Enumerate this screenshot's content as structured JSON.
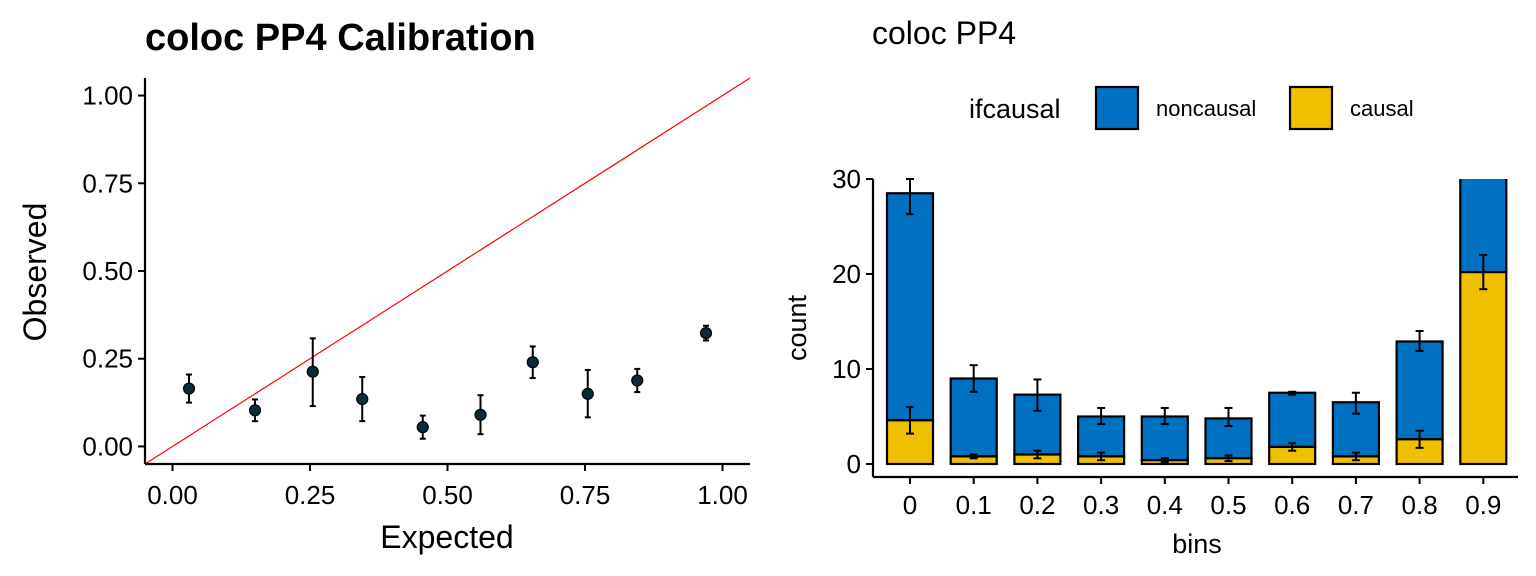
{
  "colors": {
    "noncausal": "#0070C0",
    "causal": "#EFC000",
    "point": "#0B2A3A",
    "identity_line": "#FF0000",
    "bar_outline": "#000000"
  },
  "chart_data": [
    {
      "type": "scatter",
      "title": "coloc PP4 Calibration",
      "xlabel": "Expected",
      "ylabel": "Observed",
      "xlim": [
        -0.05,
        1.05
      ],
      "ylim": [
        -0.05,
        1.05
      ],
      "xticks": [
        0,
        0.25,
        0.5,
        0.75,
        1
      ],
      "yticks": [
        0,
        0.25,
        0.5,
        0.75,
        1
      ],
      "xtick_labels": [
        "0.00",
        "0.25",
        "0.50",
        "0.75",
        "1.00"
      ],
      "ytick_labels": [
        "0.00",
        "0.25",
        "0.50",
        "0.75",
        "1.00"
      ],
      "reference_line": "y = x",
      "points": [
        {
          "x": 0.03,
          "y": 0.165,
          "ymin": 0.125,
          "ymax": 0.205
        },
        {
          "x": 0.15,
          "y": 0.103,
          "ymin": 0.072,
          "ymax": 0.134
        },
        {
          "x": 0.255,
          "y": 0.213,
          "ymin": 0.115,
          "ymax": 0.308
        },
        {
          "x": 0.345,
          "y": 0.135,
          "ymin": 0.072,
          "ymax": 0.198
        },
        {
          "x": 0.455,
          "y": 0.055,
          "ymin": 0.022,
          "ymax": 0.088
        },
        {
          "x": 0.56,
          "y": 0.09,
          "ymin": 0.035,
          "ymax": 0.146
        },
        {
          "x": 0.655,
          "y": 0.24,
          "ymin": 0.195,
          "ymax": 0.285
        },
        {
          "x": 0.755,
          "y": 0.15,
          "ymin": 0.083,
          "ymax": 0.218
        },
        {
          "x": 0.845,
          "y": 0.188,
          "ymin": 0.155,
          "ymax": 0.221
        },
        {
          "x": 0.97,
          "y": 0.323,
          "ymin": 0.302,
          "ymax": 0.344
        }
      ],
      "grid": false
    },
    {
      "type": "bar",
      "stacked": true,
      "title": "coloc PP4",
      "xlabel": "bins",
      "ylabel": "count",
      "ylim": [
        0,
        30
      ],
      "yticks": [
        0,
        10,
        20,
        30
      ],
      "categories": [
        "0",
        "0.1",
        "0.2",
        "0.3",
        "0.4",
        "0.5",
        "0.6",
        "0.7",
        "0.8",
        "0.9"
      ],
      "legend": {
        "title": "ifcausal",
        "position": "top",
        "entries": [
          "noncausal",
          "causal"
        ]
      },
      "series": [
        {
          "name": "causal",
          "values": [
            4.6,
            0.8,
            1.0,
            0.8,
            0.4,
            0.6,
            1.8,
            0.8,
            2.6,
            20.2
          ],
          "err_low": [
            3.2,
            0.6,
            0.6,
            0.4,
            0.2,
            0.3,
            1.4,
            0.4,
            1.7,
            18.4
          ],
          "err_high": [
            6.0,
            1.0,
            1.4,
            1.2,
            0.6,
            0.9,
            2.2,
            1.2,
            3.5,
            22.0
          ]
        },
        {
          "name": "noncausal",
          "values": [
            23.9,
            8.2,
            6.3,
            4.2,
            4.6,
            4.2,
            5.7,
            5.7,
            10.3,
            11.0
          ],
          "total_low": [
            26.3,
            7.6,
            5.6,
            4.2,
            4.2,
            4.0,
            7.3,
            5.3,
            11.9,
            null
          ],
          "total_high": [
            30.0,
            10.4,
            8.9,
            5.9,
            5.9,
            5.9,
            7.6,
            7.5,
            14.0,
            null
          ]
        }
      ],
      "grid": false
    }
  ]
}
